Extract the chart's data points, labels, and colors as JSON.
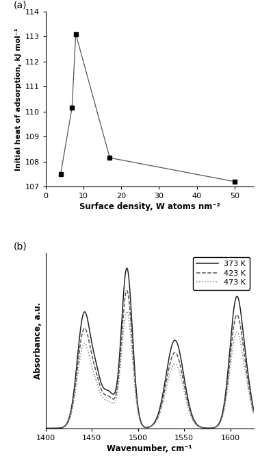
{
  "panel_a": {
    "label": "(a)",
    "x": [
      4,
      7,
      8,
      17,
      50
    ],
    "y": [
      107.5,
      110.15,
      113.1,
      108.15,
      107.2
    ],
    "xlabel": "Surface density, W atoms nm⁻²",
    "ylabel": "Initial heat of adsorption, kJ mol⁻¹",
    "xlim": [
      0,
      55
    ],
    "ylim": [
      107.0,
      114.0
    ],
    "yticks": [
      107,
      108,
      109,
      110,
      111,
      112,
      113,
      114
    ],
    "xticks": [
      0,
      10,
      20,
      30,
      40,
      50
    ],
    "marker": "s",
    "markersize": 5,
    "color": "#555555",
    "linewidth": 0.9
  },
  "panel_b": {
    "label": "(b)",
    "xlabel": "Wavenumber, cm⁻¹",
    "ylabel": "Absorbance, a.u.",
    "xlim": [
      1400,
      1625
    ],
    "ylim": [
      0,
      1.05
    ],
    "xticks": [
      1400,
      1450,
      1500,
      1550,
      1600
    ],
    "legend_labels": [
      "373 K",
      "423 K",
      "473 K"
    ],
    "line_styles": [
      "-",
      "--",
      ":"
    ],
    "line_colors": [
      "#222222",
      "#555555",
      "#888888"
    ],
    "linewidths": [
      1.1,
      1.1,
      1.1
    ]
  }
}
